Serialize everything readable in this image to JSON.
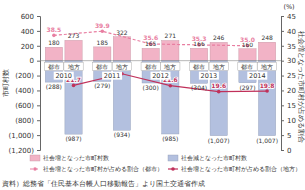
{
  "chart_data": {
    "type": "bar",
    "categories": [
      "2010",
      "2011",
      "2012",
      "2013",
      "2014"
    ],
    "subcategories": [
      "都市",
      "地方"
    ],
    "y_label": "市町村数",
    "y2_label": "社会増となった市町村が占める割合",
    "y2_unit_label": "(%)",
    "source": "資料）総務省「住民基本台帳人口移動報告」より国土交通省作成",
    "ylim": [
      -1200,
      600
    ],
    "yticks": [
      600,
      400,
      200,
      0,
      {
        "value": -200,
        "label": "(200)"
      },
      {
        "value": -400,
        "label": "(400)"
      },
      {
        "value": -600,
        "label": "(600)"
      },
      {
        "value": -800,
        "label": "(800)"
      },
      {
        "value": -1000,
        "label": "(1,000)"
      },
      {
        "value": -1200,
        "label": "(1,200)"
      }
    ],
    "y2lim": [
      0,
      45
    ],
    "y2ticks": [
      0,
      5,
      10,
      15,
      20,
      25,
      30,
      35,
      40,
      45
    ],
    "grid": false,
    "legend": "bottom",
    "data_labels": true,
    "series": [
      {
        "name": "社会増となった市町村数",
        "type": "bar",
        "color": "#f2b3c6",
        "values": [
          [
            180,
            273
          ],
          [
            185,
            322
          ],
          [
            165,
            271
          ],
          [
            166,
            246
          ],
          [
            160,
            248
          ]
        ]
      },
      {
        "name": "社会減となった市町村数",
        "type": "bar",
        "color": "#b3c0df",
        "values": [
          [
            -288,
            -987
          ],
          [
            -279,
            -934
          ],
          [
            -300,
            -985
          ],
          [
            -304,
            -1007
          ],
          [
            -297,
            -1007
          ]
        ],
        "value_labels": [
          [
            "(288)",
            "(987)"
          ],
          [
            "(279)",
            "(934)"
          ],
          [
            "(300)",
            "(985)"
          ],
          [
            "(304)",
            "(1,007)"
          ],
          [
            "(297)",
            "(1,007)"
          ]
        ]
      },
      {
        "name": "社会増となった市町村が占める割合（都市）",
        "type": "line",
        "axis": "y2",
        "subcategory": "都市",
        "color": "#e87ea1",
        "marker": "circle",
        "line_style": "dashed",
        "values": [
          38.5,
          39.9,
          35.6,
          35.3,
          35.0
        ],
        "value_labels": [
          "38.5",
          "39.9",
          "35.6",
          "35.3",
          "35.0"
        ]
      },
      {
        "name": "社会増となった市町村が占める割合（地方）",
        "type": "line",
        "axis": "y2",
        "subcategory": "地方",
        "color": "#c0305a",
        "marker": "circle",
        "line_style": "solid",
        "values": [
          21.7,
          25.6,
          21.6,
          19.6,
          19.8
        ],
        "value_labels": [
          "21.7",
          "25.6",
          "21.6",
          "19.6",
          "19.8"
        ]
      }
    ]
  }
}
